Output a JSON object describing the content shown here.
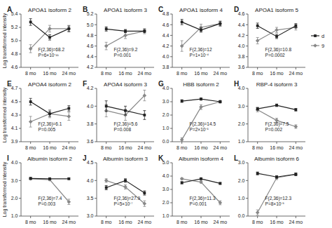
{
  "chart_data": [
    {
      "type": "line",
      "title": "APOA1 isoform 2",
      "label": "A",
      "annotations": [
        "F(2,36)=68.2\nP=6×10⁻¹¹"
      ],
      "y_label": "Log transformed intensity",
      "categories": [
        "8 mo",
        "16 mo",
        "24 mo"
      ],
      "series": [
        {
          "color": "#222222",
          "marker": "square",
          "values": [
            5.28,
            5.05,
            5.18
          ],
          "errors": [
            0.05,
            0.04,
            0.04
          ]
        },
        {
          "color": "#888888",
          "marker": "diamond",
          "values": [
            4.88,
            5.18,
            5.18
          ],
          "errors": [
            0.06,
            0.05,
            0.05
          ]
        }
      ],
      "ylim": [
        4.6,
        5.4
      ],
      "yticks": [
        4.6,
        4.8,
        {
          "value": 5.0,
          "label": "5.0"
        },
        5.2,
        5.4
      ]
    },
    {
      "type": "line",
      "title": "APOA1 isoform 3",
      "label": "B",
      "annotations": [
        "F(2,36)=9.2\nP=0.001"
      ],
      "categories": [
        "8 mo",
        "16 mo",
        "24 mo"
      ],
      "series": [
        {
          "color": "#222222",
          "marker": "square",
          "values": [
            4.92,
            4.88,
            4.88
          ],
          "errors": [
            0.04,
            0.03,
            0.03
          ]
        },
        {
          "color": "#888888",
          "marker": "diamond",
          "values": [
            4.6,
            4.8,
            4.88
          ],
          "errors": [
            0.07,
            0.06,
            0.05
          ]
        }
      ],
      "ylim": [
        4.2,
        5.2
      ],
      "yticks": [
        4.2,
        4.4,
        4.6,
        4.8,
        {
          "value": 5.0,
          "label": "5.0"
        },
        5.2
      ]
    },
    {
      "type": "line",
      "title": "APOA1 isoform 4",
      "label": "C",
      "annotations": [
        "F(2,36)=12\nP=1×10⁻⁴"
      ],
      "categories": [
        "8 mo",
        "16 mo",
        "24 mo"
      ],
      "series": [
        {
          "color": "#222222",
          "marker": "square",
          "values": [
            4.65,
            4.5,
            4.62
          ],
          "errors": [
            0.05,
            0.04,
            0.04
          ]
        },
        {
          "color": "#888888",
          "marker": "diamond",
          "values": [
            4.2,
            4.55,
            4.62
          ],
          "errors": [
            0.1,
            0.06,
            0.05
          ]
        }
      ],
      "ylim": [
        3.8,
        4.8
      ],
      "yticks": [
        3.8,
        {
          "value": 4.0,
          "label": "4.0"
        },
        4.2,
        4.4,
        4.6,
        4.8
      ]
    },
    {
      "type": "line",
      "title": "APOA1 isoform 5",
      "label": "D",
      "annotations": [
        "F(2,36)=10.8\nP=0.0002"
      ],
      "legend": "right",
      "categories": [
        "8 mo",
        "16 mo",
        "24 mo"
      ],
      "series": [
        {
          "name": "d",
          "color": "#222222",
          "marker": "square",
          "values": [
            4.38,
            4.18,
            4.38
          ],
          "errors": [
            0.05,
            0.04,
            0.04
          ]
        },
        {
          "name": "9",
          "color": "#888888",
          "marker": "diamond",
          "values": [
            4.1,
            4.3,
            4.35
          ],
          "errors": [
            0.06,
            0.05,
            0.05
          ]
        }
      ],
      "ylim": [
        3.6,
        4.6
      ],
      "yticks": [
        3.6,
        3.8,
        {
          "value": 4.0,
          "label": "4.0"
        },
        4.2,
        4.4,
        4.6
      ]
    },
    {
      "type": "line",
      "title": "APOA4 isoform 2",
      "label": "E",
      "annotations": [
        "F(2,36)=6.1\nP=0.005"
      ],
      "y_label": "Log transformed intensity",
      "categories": [
        "8 mo",
        "16 mo",
        "24 mo"
      ],
      "series": [
        {
          "color": "#222222",
          "marker": "square",
          "values": [
            4.5,
            4.32,
            4.4
          ],
          "errors": [
            0.05,
            0.04,
            0.04
          ]
        },
        {
          "color": "#888888",
          "marker": "diamond",
          "values": [
            4.2,
            4.32,
            4.28
          ],
          "errors": [
            0.08,
            0.06,
            0.06
          ]
        }
      ],
      "ylim": [
        3.9,
        4.7
      ],
      "yticks": [
        3.9,
        4.1,
        4.3,
        4.5,
        4.7
      ]
    },
    {
      "type": "line",
      "title": "APOA4  isoform 3",
      "label": "F",
      "annotations": [
        "F(2,36)=5.6\nP=0.008"
      ],
      "categories": [
        "8 mo",
        "16 mo",
        "24 mo"
      ],
      "series": [
        {
          "color": "#222222",
          "marker": "square",
          "values": [
            4.0,
            3.95,
            3.9
          ],
          "errors": [
            0.06,
            0.05,
            0.05
          ]
        },
        {
          "color": "#888888",
          "marker": "diamond",
          "values": [
            3.95,
            3.9,
            4.12
          ],
          "errors": [
            0.07,
            0.06,
            0.06
          ]
        }
      ],
      "ylim": [
        3.6,
        4.2
      ],
      "yticks": [
        3.6,
        3.8,
        {
          "value": 4.0,
          "label": "4.0"
        },
        4.2
      ]
    },
    {
      "type": "line",
      "title": "HBB isoform 2",
      "label": "G",
      "annotations": [
        "F(2,36)=14.5\nP=2×10⁻⁵"
      ],
      "categories": [
        "8 mo",
        "16 mo",
        "24 mo"
      ],
      "series": [
        {
          "color": "#222222",
          "marker": "square",
          "values": [
            3.05,
            3.2,
            3.0
          ],
          "errors": [
            0.1,
            0.08,
            0.08
          ]
        },
        {
          "color": "#888888",
          "marker": "diamond",
          "values": [
            0.15,
            2.6,
            3.0
          ],
          "errors": [
            0.15,
            0.18,
            0.1
          ]
        }
      ],
      "ylim": [
        0.0,
        4.0
      ],
      "yticks": [
        {
          "value": 0.0,
          "label": "0.0"
        },
        {
          "value": 1.0,
          "label": "1.0"
        },
        {
          "value": 2.0,
          "label": "2.0"
        },
        {
          "value": 3.0,
          "label": "3.0"
        },
        {
          "value": 4.0,
          "label": "4.0"
        }
      ]
    },
    {
      "type": "line",
      "title": "RBP-4 isoform 3",
      "label": "H",
      "annotations": [
        "F(2,36)=7.5\nP=0.002"
      ],
      "categories": [
        "8 mo",
        "16 mo",
        "24 mo"
      ],
      "series": [
        {
          "color": "#222222",
          "marker": "square",
          "values": [
            2.85,
            3.05,
            2.8
          ],
          "errors": [
            0.08,
            0.07,
            0.07
          ]
        },
        {
          "color": "#888888",
          "marker": "diamond",
          "values": [
            2.8,
            2.2,
            1.85
          ],
          "errors": [
            0.12,
            0.12,
            0.1
          ]
        }
      ],
      "ylim": [
        1.0,
        4.0
      ],
      "yticks": [
        {
          "value": 1.0,
          "label": "1.0"
        },
        {
          "value": 2.0,
          "label": "2.0"
        },
        {
          "value": 3.0,
          "label": "3.0"
        },
        {
          "value": 4.0,
          "label": "4.0"
        }
      ]
    },
    {
      "type": "line",
      "title": "Albumin isoform 2",
      "label": "I",
      "annotations": [
        "F(2,36)=7.4\nP=0.003"
      ],
      "y_label": "Log transformed intensity",
      "categories": [
        "8 mo",
        "16 mo",
        "24 mo"
      ],
      "series": [
        {
          "color": "#222222",
          "marker": "square",
          "values": [
            3.12,
            3.1,
            3.1
          ],
          "errors": [
            0.05,
            0.04,
            0.04
          ]
        },
        {
          "color": "#888888",
          "marker": "diamond",
          "values": [
            3.1,
            3.05,
            1.8
          ],
          "errors": [
            0.06,
            0.06,
            0.15
          ]
        }
      ],
      "ylim": [
        1.0,
        4.0
      ],
      "yticks": [
        {
          "value": 1.0,
          "label": "1.0"
        },
        {
          "value": 2.0,
          "label": "2.0"
        },
        {
          "value": 3.0,
          "label": "3.0"
        },
        {
          "value": 4.0,
          "label": "4.0"
        }
      ]
    },
    {
      "type": "line",
      "title": "Albumin isoform 3",
      "label": "J",
      "annotations": [
        "F(2,36)=27.9\nP=5×10⁻⁷"
      ],
      "categories": [
        "8 mo",
        "16 mo",
        "24 mo"
      ],
      "series": [
        {
          "color": "#222222",
          "marker": "square",
          "values": [
            3.8,
            4.0,
            3.65
          ],
          "errors": [
            0.06,
            0.05,
            0.06
          ]
        },
        {
          "color": "#888888",
          "marker": "diamond",
          "values": [
            4.0,
            3.82,
            3.35
          ],
          "errors": [
            0.05,
            0.06,
            0.08
          ]
        }
      ],
      "ylim": [
        3.0,
        4.5
      ],
      "yticks": [
        {
          "value": 3.0,
          "label": "3.0"
        },
        3.5,
        {
          "value": 4.0,
          "label": "4.0"
        },
        4.5
      ]
    },
    {
      "type": "line",
      "title": "Albumin isoform 4",
      "label": "K",
      "annotations": [
        "F(2,36)=11.3\nP=0.001"
      ],
      "categories": [
        "8 mo",
        "16 mo",
        "24 mo"
      ],
      "series": [
        {
          "color": "#222222",
          "marker": "square",
          "values": [
            3.5,
            3.8,
            3.45
          ],
          "errors": [
            0.08,
            0.07,
            0.07
          ]
        },
        {
          "color": "#888888",
          "marker": "diamond",
          "values": [
            3.8,
            3.55,
            2.0
          ],
          "errors": [
            0.07,
            0.08,
            0.15
          ]
        }
      ],
      "ylim": [
        1.0,
        5.0
      ],
      "yticks": [
        {
          "value": 1.0,
          "label": "1.0"
        },
        {
          "value": 2.0,
          "label": "2.0"
        },
        {
          "value": 3.0,
          "label": "3.0"
        },
        {
          "value": 4.0,
          "label": "4.0"
        },
        {
          "value": 5.0,
          "label": "5.0"
        }
      ]
    },
    {
      "type": "line",
      "title": "Albumin isoform 6",
      "label": "L",
      "annotations": [
        "F(2,36)=12.3\nP=8×10⁻⁵"
      ],
      "categories": [
        "8 mo",
        "16 mo",
        "24 mo"
      ],
      "series": [
        {
          "color": "#222222",
          "marker": "square",
          "values": [
            2.4,
            2.2,
            2.35
          ],
          "errors": [
            0.08,
            0.07,
            0.07
          ]
        },
        {
          "color": "#888888",
          "marker": "diamond",
          "values": [
            0.2,
            2.15,
            2.35
          ],
          "errors": [
            0.15,
            0.1,
            0.08
          ]
        }
      ],
      "ylim": [
        0.0,
        3.0
      ],
      "yticks": [
        {
          "value": 0.0,
          "label": "0.0"
        },
        {
          "value": 1.0,
          "label": "1.0"
        },
        {
          "value": 2.0,
          "label": "2.0"
        },
        {
          "value": 3.0,
          "label": "3.0"
        }
      ]
    }
  ]
}
